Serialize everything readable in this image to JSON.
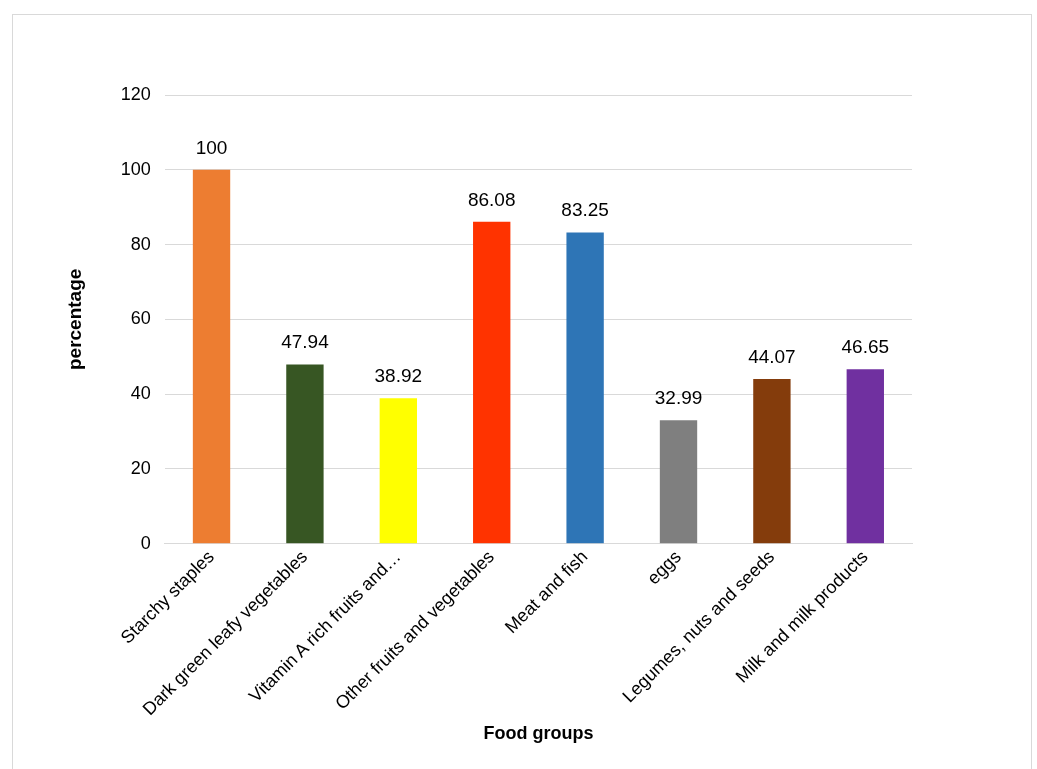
{
  "chart_data": {
    "type": "bar",
    "xlabel": "Food groups",
    "ylabel": "percentage",
    "categories": [
      "Starchy staples",
      "Dark green leafy vegetables",
      "Vitamin A rich fruits and…",
      "Other fruits and vegetables",
      "Meat and fish",
      "eggs",
      "Legumes, nuts and seeds",
      "Milk and milk products"
    ],
    "values": [
      100,
      47.94,
      38.92,
      86.08,
      83.25,
      32.99,
      44.07,
      46.65
    ],
    "colors": [
      "#ed7d31",
      "#375623",
      "#ffff00",
      "#ff3300",
      "#2e75b6",
      "#7f7f7f",
      "#843c0c",
      "#7030a0"
    ],
    "ylim": [
      0,
      120
    ],
    "yticks": [
      0,
      20,
      40,
      60,
      80,
      100,
      120
    ],
    "grid": "y",
    "data_labels": true,
    "legend": false
  }
}
